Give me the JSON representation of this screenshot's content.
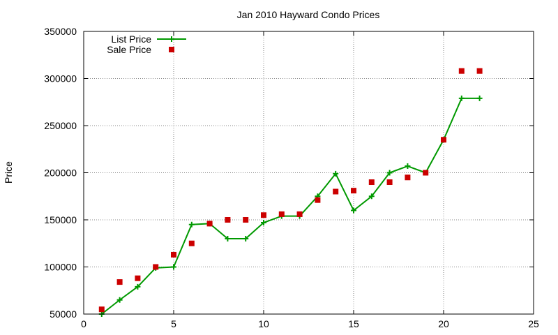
{
  "chart_data": {
    "type": "line",
    "title": "Jan 2010 Hayward Condo Prices",
    "xlabel": "",
    "ylabel": "Price",
    "xlim": [
      0,
      25
    ],
    "ylim": [
      50000,
      350000
    ],
    "xticks": [
      0,
      5,
      10,
      15,
      20,
      25
    ],
    "yticks": [
      50000,
      100000,
      150000,
      200000,
      250000,
      300000,
      350000
    ],
    "grid": true,
    "legend_position": "top-left",
    "series": [
      {
        "name": "List Price",
        "kind": "line-with-plus-markers",
        "color": "#009900",
        "x": [
          1,
          2,
          3,
          4,
          5,
          6,
          7,
          8,
          9,
          10,
          11,
          12,
          13,
          14,
          15,
          16,
          17,
          18,
          19,
          20,
          21,
          22
        ],
        "y": [
          50000,
          65000,
          79000,
          99000,
          100000,
          145000,
          146000,
          130000,
          130000,
          147000,
          154000,
          154000,
          175000,
          199000,
          160000,
          175000,
          200000,
          207000,
          200000,
          235000,
          279000,
          279000
        ]
      },
      {
        "name": "Sale Price",
        "kind": "square-points",
        "color": "#cc0000",
        "x": [
          1,
          2,
          3,
          4,
          5,
          6,
          7,
          8,
          9,
          10,
          11,
          12,
          13,
          14,
          15,
          16,
          17,
          18,
          19,
          20,
          21,
          22
        ],
        "y": [
          55000,
          84000,
          88000,
          100000,
          113000,
          125000,
          146000,
          150000,
          150000,
          155000,
          156000,
          156000,
          171000,
          180000,
          181000,
          190000,
          190000,
          195000,
          200000,
          235000,
          308000,
          308000
        ]
      }
    ]
  }
}
